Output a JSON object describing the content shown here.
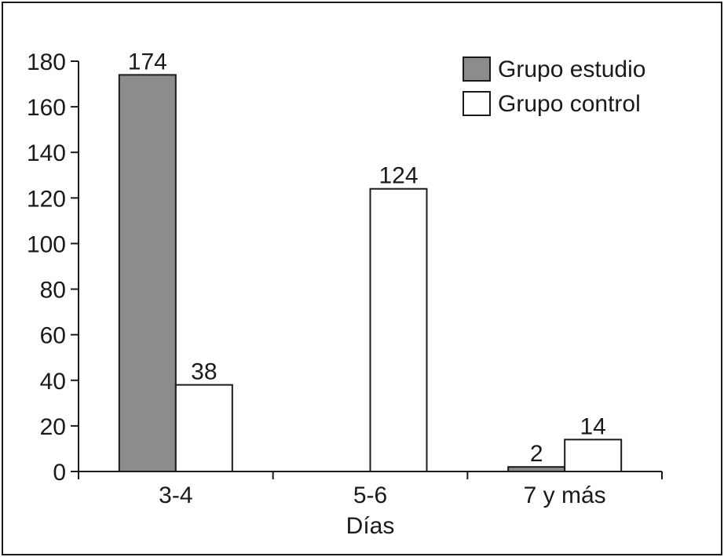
{
  "chart_data": {
    "type": "bar",
    "categories": [
      "3-4",
      "5-6",
      "7 y más"
    ],
    "series": [
      {
        "name": "Grupo estudio",
        "color": "#8c8c8c",
        "values": [
          174,
          null,
          2
        ],
        "labels": [
          "174",
          "",
          "2"
        ]
      },
      {
        "name": "Grupo control",
        "color": "#ffffff",
        "values": [
          38,
          124,
          14
        ],
        "labels": [
          "38",
          "124",
          "14"
        ]
      }
    ],
    "title": "",
    "xlabel": "Días",
    "ylabel": "",
    "ylim": [
      0,
      180
    ],
    "yticks": [
      0,
      20,
      40,
      60,
      80,
      100,
      120,
      140,
      160,
      180
    ],
    "grid": false,
    "legend_position": "top-right"
  }
}
